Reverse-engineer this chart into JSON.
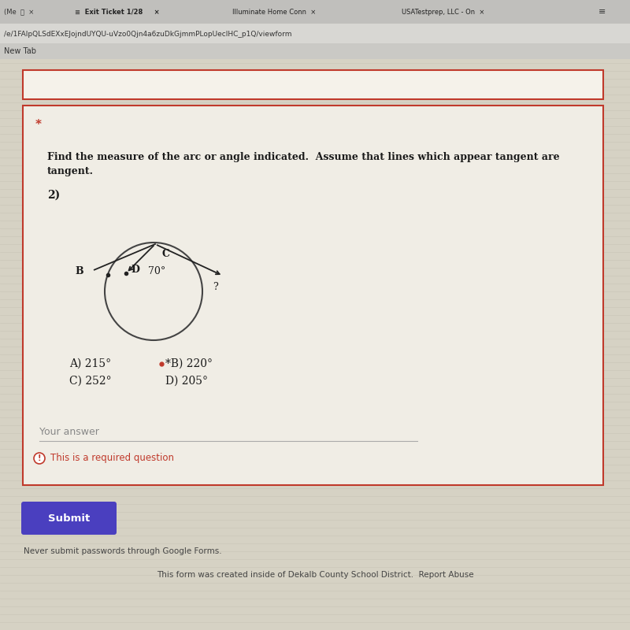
{
  "title_line1": "Find the measure of the arc or angle indicated.  Assume that lines which appear tangent are",
  "title_line2": "tangent.",
  "problem_number": "2)",
  "angle_label": "70°",
  "question_mark": "?",
  "answer_choices": [
    "A) 215°",
    "*B) 220°",
    "C) 252°",
    "D) 205°"
  ],
  "your_answer_label": "Your answer",
  "required_text": "This is a required question",
  "submit_text": "Submit",
  "bg_color": "#dcdcdc",
  "page_bg": "#d0cfc8",
  "card_color": "#f0ede5",
  "border_color": "#c0392b",
  "text_color": "#1a1a1a",
  "circle_color": "#444444",
  "line_color": "#222222",
  "submit_bg": "#4a3fbf",
  "submit_text_color": "#ffffff",
  "required_color": "#c0392b",
  "url_text": "/e/1FAlpQLSdEXxEJojndUYQU-uVzo0Qjn4a6zuDkGjmmPLopUeclHC_p1Q/viewform",
  "footer_text1": "Never submit passwords through Google Forms.",
  "footer_text2": "This form was created inside of Dekalb County School District.  Report Abuse"
}
